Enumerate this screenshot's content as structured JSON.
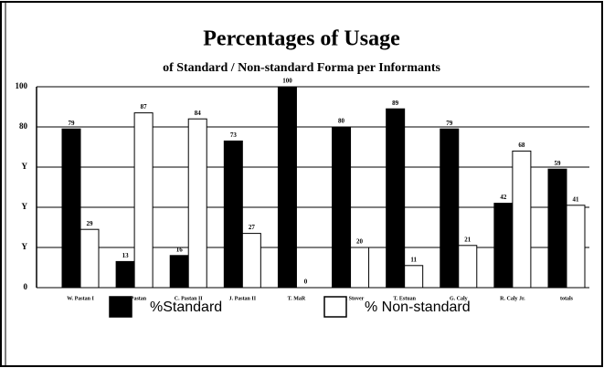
{
  "chart_data": {
    "type": "bar",
    "title": "Percentages of Usage",
    "subtitle": "of Standard / Non-standard Forma per Informants",
    "categories": [
      "W. Pastan I",
      "M. Pastan",
      "C. Pastan II",
      "J. Pastan II",
      "T. MaR",
      "D.E. Stover",
      "T. Estuan",
      "G. Caly",
      "R. Caly Jr.",
      "totals"
    ],
    "series": [
      {
        "name": "%Standard",
        "color": "#000000",
        "values": [
          79,
          13,
          16,
          73,
          100,
          80,
          89,
          79,
          42,
          59
        ]
      },
      {
        "name": "% Non-standard",
        "color": "#ffffff",
        "values": [
          29,
          87,
          84,
          27,
          0,
          20,
          11,
          21,
          68,
          41
        ]
      }
    ],
    "ylim": [
      0,
      100
    ],
    "yticks": [
      0,
      {
        "value": 20,
        "label": "Y"
      },
      {
        "value": 40,
        "label": "Y"
      },
      {
        "value": 60,
        "label": "Y"
      },
      80,
      100
    ],
    "grid": true,
    "legend": "bottom"
  }
}
